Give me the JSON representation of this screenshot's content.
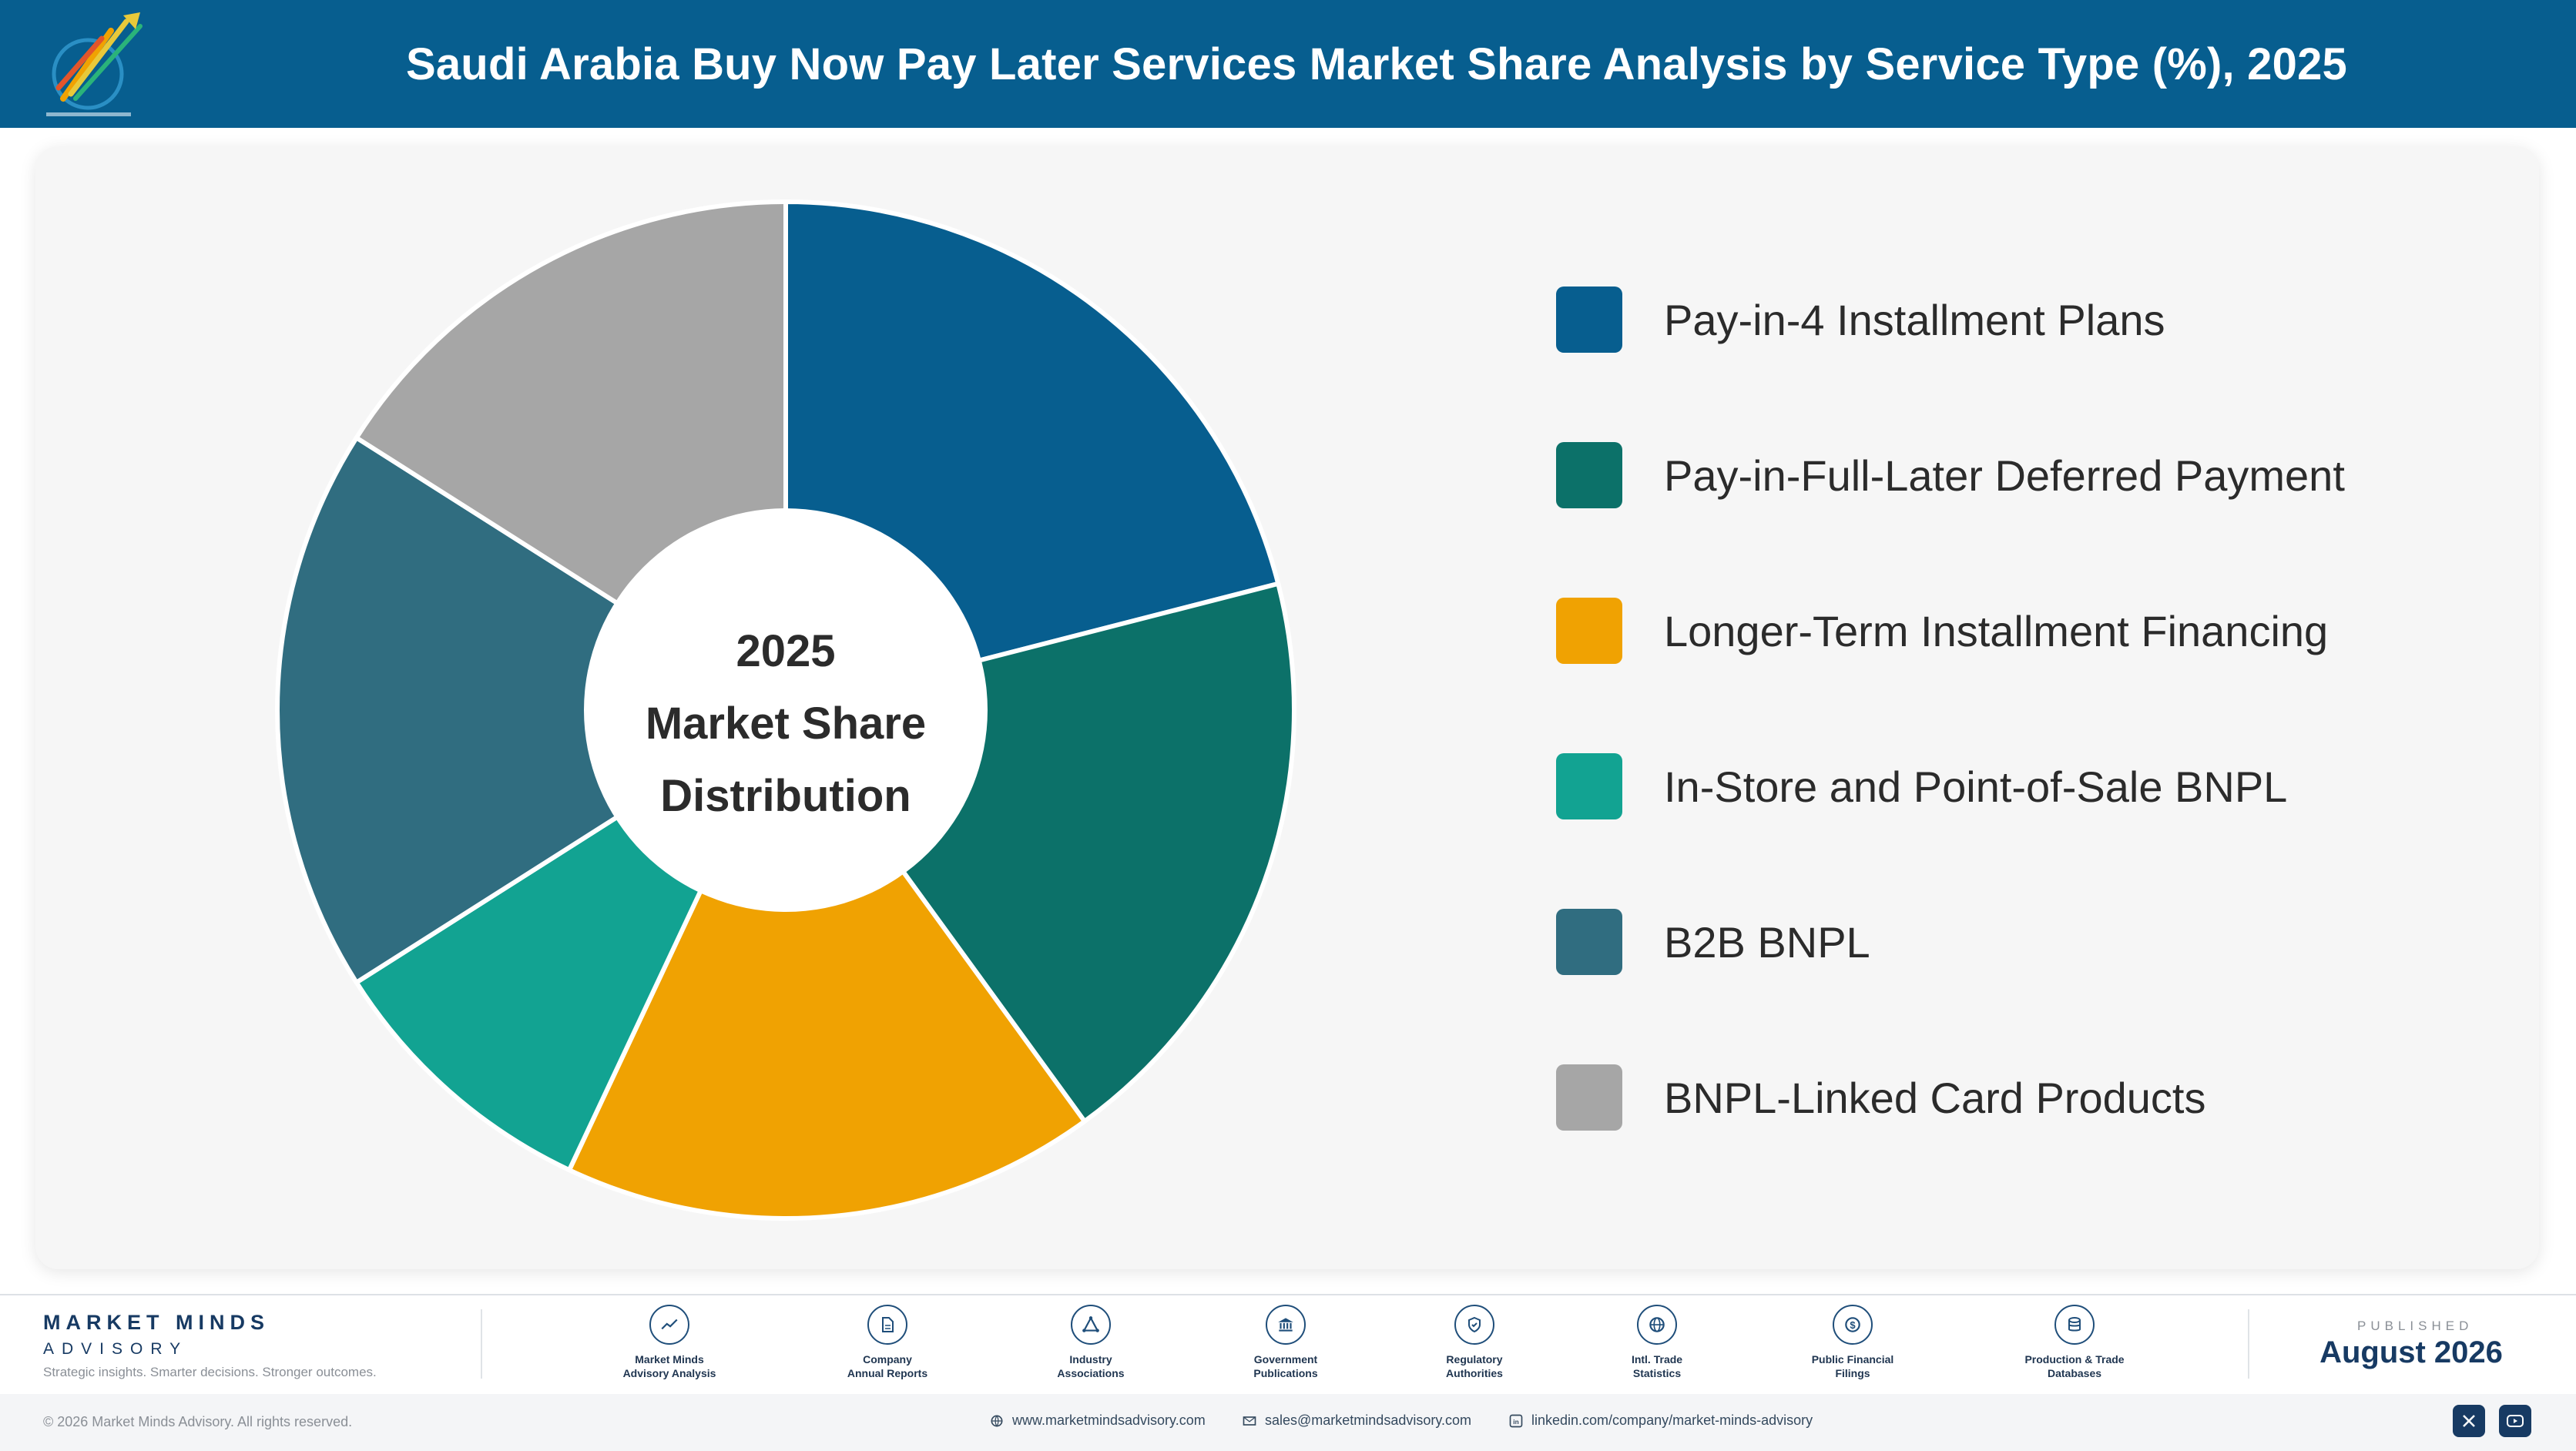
{
  "header": {
    "title": "Saudi Arabia Buy Now Pay Later Services Market Share Analysis by Service Type (%), 2025"
  },
  "chart_data": {
    "type": "pie",
    "variant": "donut",
    "title": "Saudi Arabia Buy Now Pay Later Services Market Share Analysis by Service Type (%), 2025",
    "center_label": [
      "2025",
      "Market Share",
      "Distribution"
    ],
    "categories": [
      "Pay-in-4 Installment Plans",
      "Pay-in-Full-Later Deferred Payment",
      "Longer-Term Installment Financing",
      "In-Store and Point-of-Sale BNPL",
      "B2B BNPL",
      "BNPL-Linked Card Products"
    ],
    "values": [
      21,
      19,
      17,
      9,
      18,
      16
    ],
    "unit": "%",
    "colors": [
      "#075e8f",
      "#0c7169",
      "#f0a202",
      "#12a392",
      "#306d80",
      "#a6a6a6"
    ],
    "legend_position": "right",
    "data_labels": false
  },
  "footer": {
    "brand_name": "MARKET MINDS",
    "brand_sub": "ADVISORY",
    "tagline": "Strategic insights. Smarter decisions. Stronger outcomes.",
    "sources": [
      {
        "label": "Market Minds\nAdvisory Analysis",
        "icon": "chart-line-icon"
      },
      {
        "label": "Company\nAnnual Reports",
        "icon": "document-icon"
      },
      {
        "label": "Industry\nAssociations",
        "icon": "network-icon"
      },
      {
        "label": "Government\nPublications",
        "icon": "government-building-icon"
      },
      {
        "label": "Regulatory\nAuthorities",
        "icon": "shield-check-icon"
      },
      {
        "label": "Intl. Trade\nStatistics",
        "icon": "globe-icon"
      },
      {
        "label": "Public Financial\nFilings",
        "icon": "dollar-coin-icon"
      },
      {
        "label": "Production & Trade\nDatabases",
        "icon": "database-icon"
      }
    ],
    "published_label": "PUBLISHED",
    "published_date": "August 2026",
    "copyright": "© 2026 Market Minds Advisory. All rights reserved.",
    "website": "www.marketmindsadvisory.com",
    "email": "sales@marketmindsadvisory.com",
    "linkedin": "linkedin.com/company/market-minds-advisory",
    "social": [
      "x-icon",
      "youtube-icon"
    ]
  }
}
